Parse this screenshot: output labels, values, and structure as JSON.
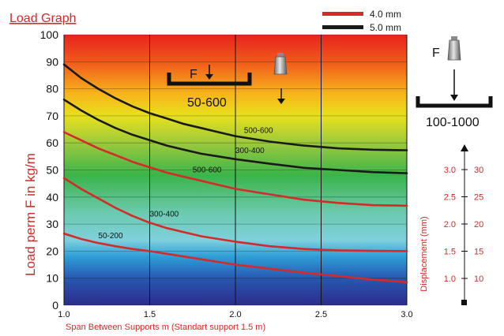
{
  "chart_data": {
    "type": "line",
    "title": "Load Graph",
    "xlabel": "Span Between Supports m (Standart support 1.5 m)",
    "ylabel": "Load perm F in kg/m",
    "xlim": [
      1.0,
      3.0
    ],
    "ylim": [
      0,
      100
    ],
    "x_ticks": [
      "1.0",
      "1.5",
      "2.0",
      "2.5",
      "3.0"
    ],
    "y_ticks": [
      "0",
      "10",
      "20",
      "30",
      "40",
      "50",
      "60",
      "70",
      "80",
      "90",
      "100"
    ],
    "grid": true,
    "legend": {
      "position": "top-right",
      "items": [
        {
          "label": "4.0 mm",
          "color": "#d42a2a"
        },
        {
          "label": "5.0 mm",
          "color": "#1a1a1a"
        }
      ]
    },
    "series": [
      {
        "thickness": "5.0 mm",
        "label": "500-600",
        "color": "#1a1a1a",
        "x": [
          1.0,
          1.1,
          1.2,
          1.3,
          1.4,
          1.5,
          1.6,
          1.7,
          1.8,
          1.9,
          2.0,
          2.2,
          2.4,
          2.6,
          2.8,
          3.0
        ],
        "y": [
          89,
          84,
          80,
          76.5,
          73.5,
          71,
          69,
          67,
          65.5,
          64,
          62.5,
          60.5,
          59,
          58,
          57.5,
          57.3
        ]
      },
      {
        "thickness": "5.0 mm",
        "label": "300-400",
        "color": "#1a1a1a",
        "x": [
          1.0,
          1.1,
          1.2,
          1.3,
          1.4,
          1.5,
          1.6,
          1.7,
          1.8,
          1.9,
          2.0,
          2.2,
          2.4,
          2.6,
          2.8,
          3.0
        ],
        "y": [
          76,
          72,
          68.5,
          65.5,
          63,
          61,
          59,
          57.5,
          56,
          55,
          54,
          52.3,
          50.8,
          50,
          49.2,
          48.8
        ]
      },
      {
        "thickness": "4.0 mm",
        "label": "500-600",
        "color": "#d42a2a",
        "x": [
          1.0,
          1.1,
          1.2,
          1.3,
          1.4,
          1.5,
          1.6,
          1.7,
          1.8,
          1.9,
          2.0,
          2.2,
          2.4,
          2.6,
          2.8,
          3.0
        ],
        "y": [
          64,
          61,
          58,
          55.5,
          53,
          51,
          49,
          47.5,
          46,
          44.5,
          43,
          41,
          39,
          37.8,
          37,
          36.8
        ]
      },
      {
        "thickness": "4.0 mm",
        "label": "300-400",
        "color": "#d42a2a",
        "x": [
          1.0,
          1.1,
          1.2,
          1.3,
          1.4,
          1.5,
          1.6,
          1.7,
          1.8,
          1.9,
          2.0,
          2.2,
          2.4,
          2.6,
          2.8,
          3.0
        ],
        "y": [
          47,
          43,
          39.5,
          36,
          33,
          30.5,
          28.5,
          27,
          25.5,
          24.5,
          23.5,
          21.8,
          20.8,
          20.3,
          20.1,
          20
        ]
      },
      {
        "thickness": "4.0 mm",
        "label": "50-200",
        "color": "#d42a2a",
        "x": [
          1.0,
          1.1,
          1.2,
          1.3,
          1.4,
          1.5,
          1.6,
          1.7,
          1.8,
          1.9,
          2.0,
          2.2,
          2.4,
          2.6,
          2.8,
          3.0
        ],
        "y": [
          26.5,
          24.5,
          23,
          21.8,
          20.8,
          20,
          19,
          18,
          17,
          16,
          15,
          13.5,
          12,
          10.8,
          9.5,
          8.5
        ]
      }
    ],
    "inset_left": {
      "force_label": "F",
      "range_label": "50-600"
    },
    "inset_right": {
      "force_label": "F",
      "range_label": "100-1000"
    },
    "displacement_axis": {
      "label": "Displacement (mm)",
      "ticks": [
        {
          "mm4": "3.0",
          "mm5": "30"
        },
        {
          "mm4": "2.5",
          "mm5": "25"
        },
        {
          "mm4": "2.0",
          "mm5": "20"
        },
        {
          "mm4": "1.5",
          "mm5": "15"
        },
        {
          "mm4": "1.0",
          "mm5": "10"
        }
      ]
    }
  }
}
